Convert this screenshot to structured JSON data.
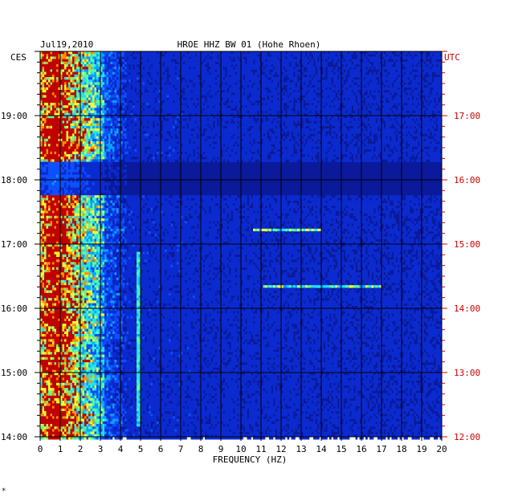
{
  "header": {
    "date": "Jul19,2010",
    "station": "HROE HHZ BW 01 (Hohe Rhoen)"
  },
  "footer": {
    "corner_mark": "*"
  },
  "chart_data": {
    "type": "heatmap",
    "title": "HROE HHZ BW 01 (Hohe Rhoen)",
    "date": "Jul19,2010",
    "xlabel": "FREQUENCY (HZ)",
    "x_ticks": [
      "0",
      "1",
      "2",
      "3",
      "4",
      "5",
      "6",
      "7",
      "8",
      "9",
      "10",
      "11",
      "12",
      "13",
      "14",
      "15",
      "16",
      "17",
      "18",
      "19",
      "20"
    ],
    "xlim": [
      0,
      20
    ],
    "left_axis": {
      "unit_label": "CES",
      "ticks": [
        "14:00",
        "15:00",
        "16:00",
        "17:00",
        "18:00",
        "19:00"
      ],
      "color": "#000000"
    },
    "right_axis": {
      "unit_label": "UTC",
      "ticks": [
        "12:00",
        "13:00",
        "14:00",
        "15:00",
        "16:00",
        "17:00"
      ],
      "color": "#cc0000"
    },
    "time_range_utc_hours": [
      12,
      18
    ],
    "colors": {
      "background": "#0a1a9a",
      "low": "#1030c8",
      "mid": "#20c0f0",
      "high": "#f0f020",
      "peak": "#c00000"
    },
    "grid": true,
    "features": {
      "high_energy_band_hz": [
        0,
        3.2
      ],
      "peak_band_hz": [
        0.3,
        1.1
      ],
      "narrow_line_hz": 4.85,
      "narrow_line_utc_hours": [
        12.2,
        14.9
      ],
      "dark_gap_utc_hours": [
        15.8,
        16.3
      ],
      "horizontal_events": [
        {
          "utc_hour": 15.24,
          "freq_hz": [
            10.5,
            14.0
          ]
        },
        {
          "utc_hour": 14.36,
          "freq_hz": [
            11.0,
            17.0
          ]
        }
      ]
    }
  }
}
